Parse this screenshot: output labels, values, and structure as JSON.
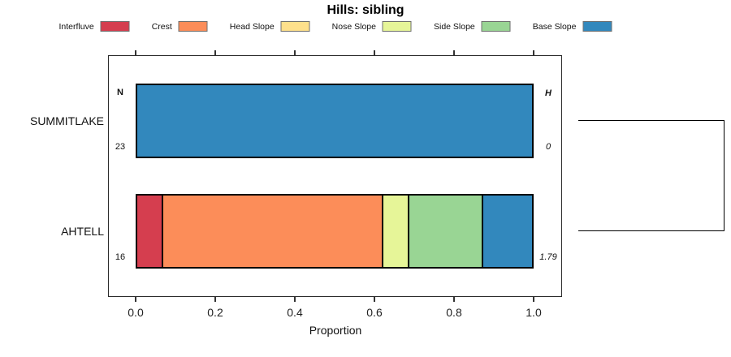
{
  "title": "Hills: sibling",
  "chart_data": {
    "type": "bar",
    "variant": "horizontal-stacked-proportion",
    "title": "Hills: sibling",
    "xlabel": "Proportion",
    "xlim": [
      0,
      1
    ],
    "x_ticks": [
      "0.0",
      "0.2",
      "0.4",
      "0.6",
      "0.8",
      "1.0"
    ],
    "grid": false,
    "legend_position": "top",
    "series": [
      {
        "name": "Interfluve",
        "color": "#D53E4F"
      },
      {
        "name": "Crest",
        "color": "#FC8D59"
      },
      {
        "name": "Head Slope",
        "color": "#FEE08B"
      },
      {
        "name": "Nose Slope",
        "color": "#E6F598"
      },
      {
        "name": "Side Slope",
        "color": "#99D594"
      },
      {
        "name": "Base Slope",
        "color": "#3288BD"
      }
    ],
    "left_header": "N",
    "right_header": "H",
    "rows": [
      {
        "label": "SUMMITLAKE",
        "n": "23",
        "h": "0",
        "proportions": [
          0,
          0,
          0,
          0,
          0,
          1
        ]
      },
      {
        "label": "AHTELL",
        "n": "16",
        "h": "1.79",
        "proportions": [
          0.0625,
          0.5625,
          0,
          0.0625,
          0.1875,
          0.125
        ]
      }
    ],
    "dendrogram": {
      "type": "sibling-bracket",
      "connects": [
        "SUMMITLAKE",
        "AHTELL"
      ]
    }
  }
}
